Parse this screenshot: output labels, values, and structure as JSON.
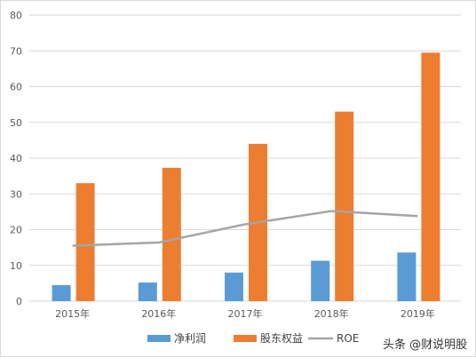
{
  "chart_data": {
    "type": "bar",
    "categories": [
      "2015年",
      "2016年",
      "2017年",
      "2018年",
      "2019年"
    ],
    "series": [
      {
        "name": "净利润",
        "type": "bar",
        "color": "#5b9bd5",
        "values": [
          4.5,
          5.2,
          8.0,
          11.3,
          13.6
        ]
      },
      {
        "name": "股东权益",
        "type": "bar",
        "color": "#ed7d31",
        "values": [
          33.0,
          37.3,
          44.0,
          53.0,
          69.5
        ]
      },
      {
        "name": "ROE",
        "type": "line",
        "color": "#a5a5a5",
        "values": [
          15.5,
          16.4,
          21.5,
          25.2,
          23.8
        ]
      }
    ],
    "ylim": [
      0,
      80
    ],
    "yticks": [
      0,
      10,
      20,
      30,
      40,
      50,
      60,
      70,
      80
    ],
    "grid": true,
    "legend_position": "bottom",
    "title": "",
    "xlabel": "",
    "ylabel": ""
  },
  "watermark": {
    "text": "头条 @财说明股"
  }
}
